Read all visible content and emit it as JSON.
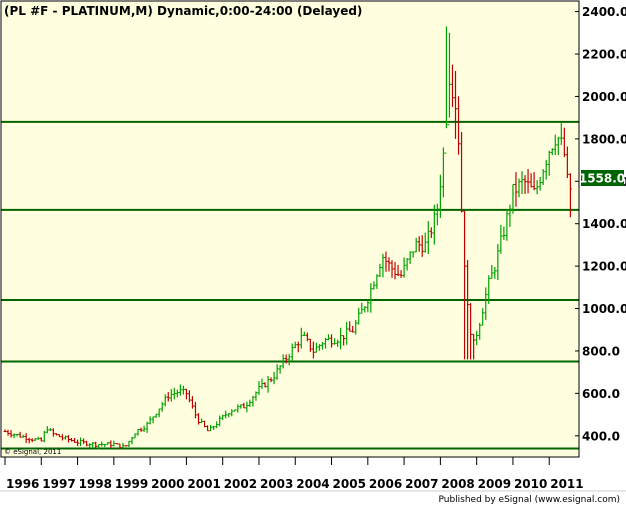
{
  "chart_data": {
    "type": "ohlc",
    "title": "(PL #F - PLATINUM,M) Dynamic,0:00-24:00 (Delayed)",
    "copyright": "© eSignal, 2011",
    "footer": "Published by eSignal (www.esignal.com)",
    "last_price": "1558.0",
    "ylim": [
      300,
      2450
    ],
    "y_ticks": [
      {
        "value": 400,
        "label": "400.0"
      },
      {
        "value": 600,
        "label": "600.0"
      },
      {
        "value": 800,
        "label": "800.0"
      },
      {
        "value": 1000,
        "label": "1000.0"
      },
      {
        "value": 1200,
        "label": "1200.0"
      },
      {
        "value": 1400,
        "label": "1400.0"
      },
      {
        "value": 1600,
        "label": "1600.0"
      },
      {
        "value": 1800,
        "label": "1800.0"
      },
      {
        "value": 2000,
        "label": "2000.0"
      },
      {
        "value": 2200,
        "label": "2200.0"
      },
      {
        "value": 2400,
        "label": "2400.0"
      }
    ],
    "x_ticks": [
      "1996",
      "1997",
      "1998",
      "1999",
      "2000",
      "2001",
      "2002",
      "2003",
      "2004",
      "2005",
      "2006",
      "2007",
      "2008",
      "2009",
      "2010",
      "2011"
    ],
    "x_start_year": 1996,
    "x_end_year": 2011.6,
    "horizontal_levels": [
      1880,
      1465,
      1040,
      750,
      340
    ],
    "colors": {
      "background": "#ffffe0",
      "up_bar": "#00a000",
      "down_bar": "#c00000",
      "level_line": "#006400",
      "last_price_box": "#006400",
      "axis_text": "#000000"
    },
    "anchors": [
      [
        1996.0,
        420
      ],
      [
        1996.5,
        395
      ],
      [
        1997.0,
        375
      ],
      [
        1997.15,
        440
      ],
      [
        1997.3,
        410
      ],
      [
        1997.6,
        390
      ],
      [
        1998.0,
        370
      ],
      [
        1998.5,
        360
      ],
      [
        1999.0,
        360
      ],
      [
        1999.3,
        345
      ],
      [
        1999.6,
        420
      ],
      [
        1999.9,
        450
      ],
      [
        2000.2,
        520
      ],
      [
        2000.5,
        590
      ],
      [
        2000.8,
        610
      ],
      [
        2001.0,
        600
      ],
      [
        2001.3,
        480
      ],
      [
        2001.6,
        420
      ],
      [
        2001.9,
        470
      ],
      [
        2002.2,
        520
      ],
      [
        2002.6,
        540
      ],
      [
        2003.0,
        620
      ],
      [
        2003.4,
        680
      ],
      [
        2003.8,
        780
      ],
      [
        2004.2,
        870
      ],
      [
        2004.5,
        800
      ],
      [
        2004.8,
        850
      ],
      [
        2005.2,
        860
      ],
      [
        2005.6,
        900
      ],
      [
        2006.0,
        1050
      ],
      [
        2006.4,
        1250
      ],
      [
        2006.6,
        1200
      ],
      [
        2006.9,
        1150
      ],
      [
        2007.3,
        1300
      ],
      [
        2007.6,
        1300
      ],
      [
        2007.9,
        1450
      ],
      [
        2008.1,
        1750
      ],
      [
        2008.25,
        2100
      ],
      [
        2008.4,
        2000
      ],
      [
        2008.5,
        1800
      ],
      [
        2008.6,
        1400
      ],
      [
        2008.75,
        1000
      ],
      [
        2008.9,
        820
      ],
      [
        2009.1,
        950
      ],
      [
        2009.3,
        1100
      ],
      [
        2009.5,
        1200
      ],
      [
        2009.8,
        1400
      ],
      [
        2010.0,
        1550
      ],
      [
        2010.3,
        1600
      ],
      [
        2010.6,
        1540
      ],
      [
        2010.8,
        1650
      ],
      [
        2011.0,
        1750
      ],
      [
        2011.2,
        1820
      ],
      [
        2011.4,
        1750
      ],
      [
        2011.5,
        1600
      ],
      [
        2011.6,
        1558
      ]
    ]
  }
}
